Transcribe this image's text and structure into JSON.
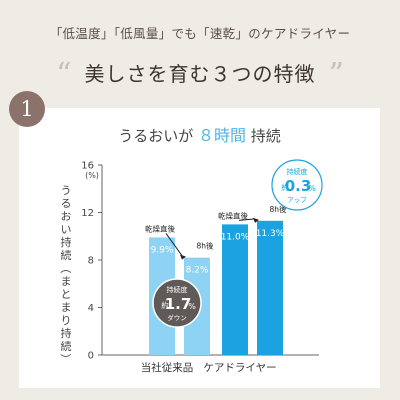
{
  "header": {
    "caption": "「低温度」「低風量」でも「速乾」のケアドライヤー",
    "heading": "美しさを育む３つの特徴",
    "open_quote": "“",
    "close_quote": "”",
    "number": "1"
  },
  "chart_data": {
    "type": "bar",
    "title_prefix": "うるおいが",
    "title_highlight": "８時間",
    "title_suffix": "持続",
    "ylabel": "うるおい持続（まとまり持続）",
    "yunit": "(%)",
    "ylim": [
      0,
      16
    ],
    "yticks": [
      0,
      4,
      8,
      12,
      16
    ],
    "categories": [
      "当社従来品",
      "ケアドライヤー"
    ],
    "series": [
      {
        "name": "乾燥直後",
        "values": [
          9.9,
          11.0
        ]
      },
      {
        "name": "8h後",
        "values": [
          8.2,
          11.3
        ]
      }
    ],
    "value_labels": [
      [
        "9.9%",
        "8.2%"
      ],
      [
        "11.0%",
        "11.3%"
      ]
    ],
    "colors": {
      "conventional": "#8ed3f3",
      "care": "#1aa3e0",
      "badge_down": "#5f5a58",
      "badge_up": "#1aa3e0"
    },
    "annotations": {
      "down": {
        "top": "持続度",
        "prefix": "約",
        "value": "1.7",
        "unit": "%",
        "bottom": "ダウン"
      },
      "up": {
        "top": "持続度",
        "prefix": "約",
        "value": "0.3",
        "unit": "%",
        "bottom": "アップ"
      }
    }
  }
}
